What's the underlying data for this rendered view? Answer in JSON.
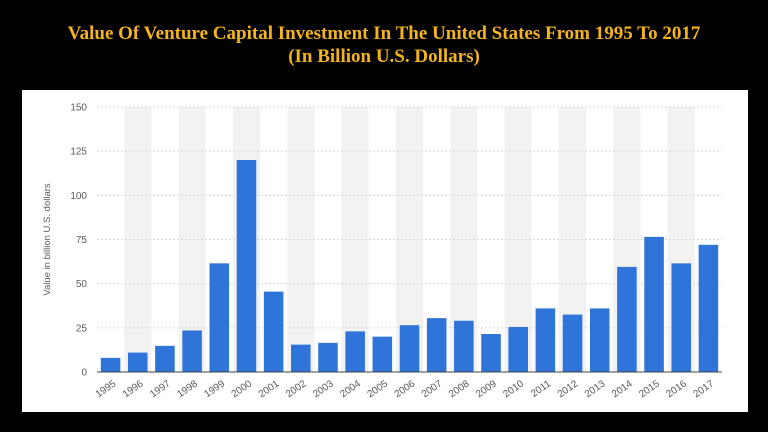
{
  "title": {
    "line1": "Value Of Venture Capital Investment In The United States From 1995 To 2017",
    "line2": "(In Billion U.S. Dollars)"
  },
  "colors": {
    "background": "#000000",
    "title": "#f4b41a",
    "bar": "#2f74d8",
    "band": "#f2f2f2",
    "grid": "#d6d6d6"
  },
  "chart_data": {
    "type": "bar",
    "title": "Value Of Venture Capital Investment In The United States From 1995 To 2017 (In Billion U.S. Dollars)",
    "xlabel": "",
    "ylabel": "Value in billion U.S. dollars",
    "ylim": [
      0,
      150
    ],
    "yticks": [
      0,
      25,
      50,
      75,
      100,
      125,
      150
    ],
    "grid": true,
    "legend": "none",
    "categories": [
      "1995",
      "1996",
      "1997",
      "1998",
      "1999",
      "2000",
      "2001",
      "2002",
      "2003",
      "2004",
      "2005",
      "2006",
      "2007",
      "2008",
      "2009",
      "2010",
      "2011",
      "2012",
      "2013",
      "2014",
      "2015",
      "2016",
      "2017"
    ],
    "values": [
      8,
      11,
      14.8,
      23.5,
      61.5,
      120,
      45.5,
      15.5,
      16.5,
      23,
      20,
      26.5,
      30.5,
      29,
      21.5,
      25.5,
      36,
      32.5,
      36,
      59.5,
      76.5,
      61.5,
      72
    ]
  }
}
